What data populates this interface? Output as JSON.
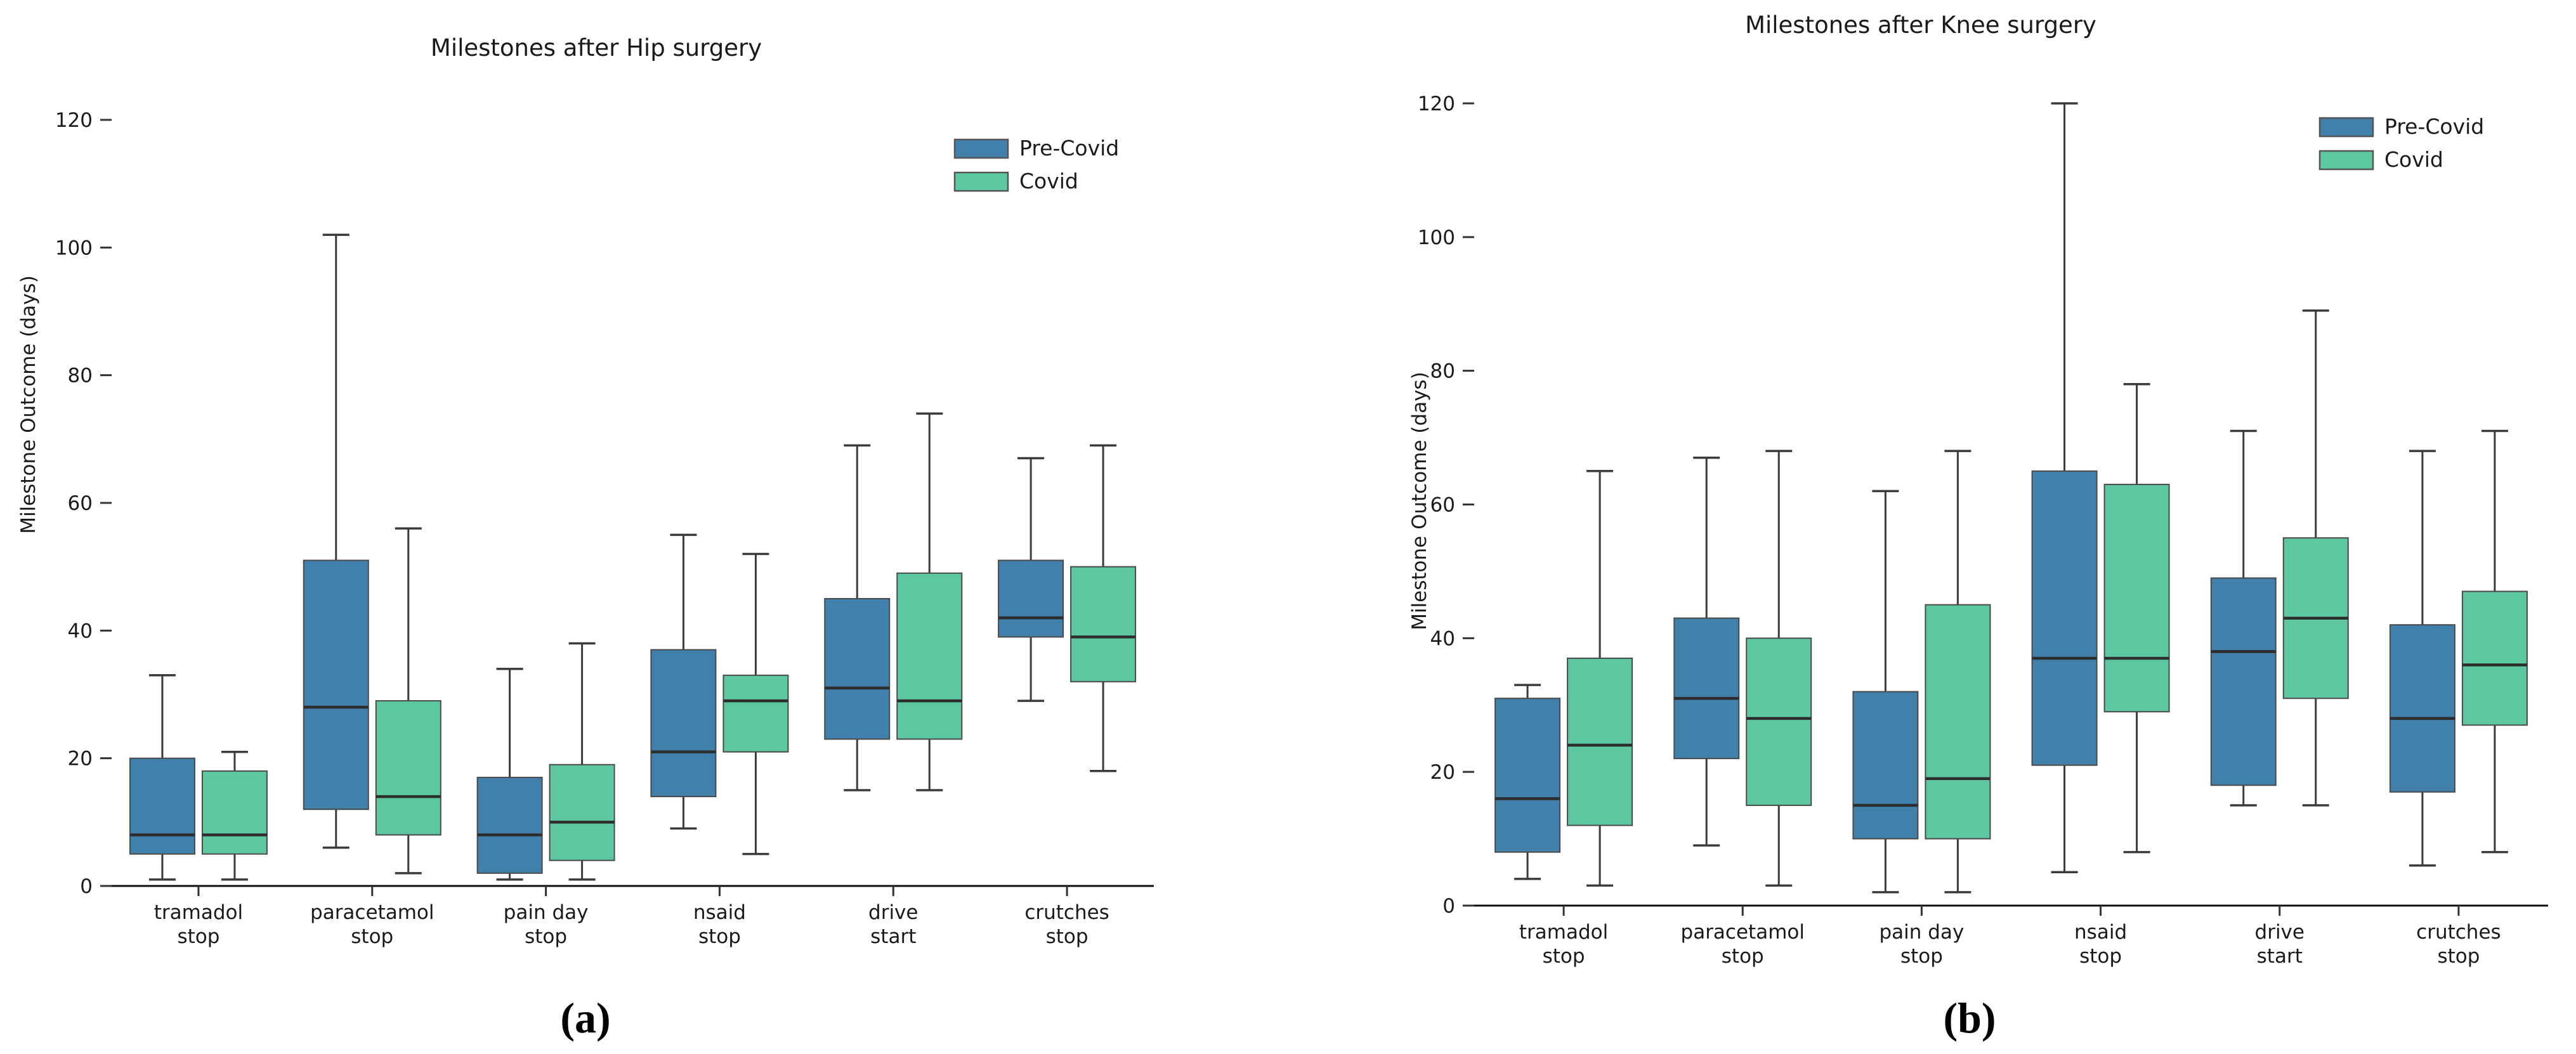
{
  "figure": {
    "background": "#ffffff",
    "text_color": "#1a1a1a",
    "axis_color": "#0f0f0f",
    "whisker_color": "#3b3b3b",
    "median_color": "#2d2d2d",
    "box_edge_color": "#4a4a4a"
  },
  "legend": {
    "items": [
      {
        "label": "Pre-Covid",
        "color": "#4180ab"
      },
      {
        "label": "Covid",
        "color": "#5dc8a0"
      }
    ]
  },
  "captions": {
    "a": "(a)",
    "b": "(b)"
  },
  "chart_data": [
    {
      "type": "box",
      "title": "Milestones after Hip surgery",
      "ylabel": "Milestone Outcome (days)",
      "ylim": [
        0,
        120
      ],
      "yticks": [
        0,
        20,
        40,
        60,
        80,
        100,
        120
      ],
      "grid": false,
      "legend_position": "upper right",
      "categories": [
        "tramadol\nstop",
        "paracetamol\nstop",
        "pain day\nstop",
        "nsaid\nstop",
        "drive\nstart",
        "crutches\nstop"
      ],
      "series": [
        {
          "name": "Pre-Covid",
          "color": "#4180ab",
          "boxes": [
            {
              "whislo": 1,
              "q1": 5,
              "med": 8,
              "q3": 20,
              "whishi": 33
            },
            {
              "whislo": 6,
              "q1": 12,
              "med": 28,
              "q3": 51,
              "whishi": 102
            },
            {
              "whislo": 1,
              "q1": 2,
              "med": 8,
              "q3": 17,
              "whishi": 34
            },
            {
              "whislo": 9,
              "q1": 14,
              "med": 21,
              "q3": 37,
              "whishi": 55
            },
            {
              "whislo": 15,
              "q1": 23,
              "med": 31,
              "q3": 45,
              "whishi": 69
            },
            {
              "whislo": 29,
              "q1": 39,
              "med": 42,
              "q3": 51,
              "whishi": 67
            }
          ]
        },
        {
          "name": "Covid",
          "color": "#5dc8a0",
          "boxes": [
            {
              "whislo": 1,
              "q1": 5,
              "med": 8,
              "q3": 18,
              "whishi": 21
            },
            {
              "whislo": 2,
              "q1": 8,
              "med": 14,
              "q3": 29,
              "whishi": 56
            },
            {
              "whislo": 1,
              "q1": 4,
              "med": 10,
              "q3": 19,
              "whishi": 38
            },
            {
              "whislo": 5,
              "q1": 21,
              "med": 29,
              "q3": 33,
              "whishi": 52
            },
            {
              "whislo": 15,
              "q1": 23,
              "med": 29,
              "q3": 49,
              "whishi": 74
            },
            {
              "whislo": 18,
              "q1": 32,
              "med": 39,
              "q3": 50,
              "whishi": 69
            }
          ]
        }
      ]
    },
    {
      "type": "box",
      "title": "Milestones after Knee surgery",
      "ylabel": "Milestone Outcome (days)",
      "ylim": [
        0,
        120
      ],
      "yticks": [
        0,
        20,
        40,
        60,
        80,
        100,
        120
      ],
      "grid": false,
      "legend_position": "upper right",
      "categories": [
        "tramadol\nstop",
        "paracetamol\nstop",
        "pain day\nstop",
        "nsaid\nstop",
        "drive\nstart",
        "crutches\nstop"
      ],
      "series": [
        {
          "name": "Pre-Covid",
          "color": "#4180ab",
          "boxes": [
            {
              "whislo": 4,
              "q1": 8,
              "med": 16,
              "q3": 31,
              "whishi": 33
            },
            {
              "whislo": 9,
              "q1": 22,
              "med": 31,
              "q3": 43,
              "whishi": 67
            },
            {
              "whislo": 2,
              "q1": 10,
              "med": 15,
              "q3": 32,
              "whishi": 62
            },
            {
              "whislo": 5,
              "q1": 21,
              "med": 37,
              "q3": 65,
              "whishi": 120
            },
            {
              "whislo": 15,
              "q1": 18,
              "med": 38,
              "q3": 49,
              "whishi": 71
            },
            {
              "whislo": 6,
              "q1": 17,
              "med": 28,
              "q3": 42,
              "whishi": 68
            }
          ]
        },
        {
          "name": "Covid",
          "color": "#5dc8a0",
          "boxes": [
            {
              "whislo": 3,
              "q1": 12,
              "med": 24,
              "q3": 37,
              "whishi": 65
            },
            {
              "whislo": 3,
              "q1": 15,
              "med": 28,
              "q3": 40,
              "whishi": 68
            },
            {
              "whislo": 2,
              "q1": 10,
              "med": 19,
              "q3": 45,
              "whishi": 68
            },
            {
              "whislo": 8,
              "q1": 29,
              "med": 37,
              "q3": 63,
              "whishi": 78
            },
            {
              "whislo": 15,
              "q1": 31,
              "med": 43,
              "q3": 55,
              "whishi": 89
            },
            {
              "whislo": 8,
              "q1": 27,
              "med": 36,
              "q3": 47,
              "whishi": 71
            }
          ]
        }
      ]
    }
  ]
}
